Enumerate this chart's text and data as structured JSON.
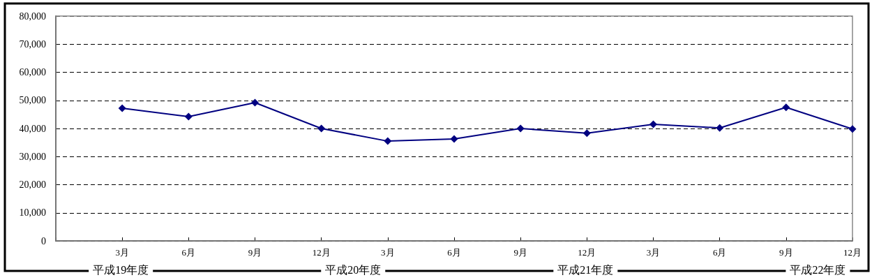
{
  "chart_data": {
    "type": "line",
    "categories": [
      null,
      "3月",
      "6月",
      "9月",
      "12月",
      "3月",
      "6月",
      "9月",
      "12月",
      "3月",
      "6月",
      "9月",
      "12月"
    ],
    "series": [
      {
        "color": "#000080",
        "values": [
          null,
          47200,
          44200,
          49200,
          40000,
          35500,
          36300,
          40000,
          38300,
          41500,
          40200,
          47500,
          39800
        ]
      }
    ],
    "ylim": [
      0,
      80000
    ],
    "yticks": [
      0,
      {
        "value": 10000,
        "label": "10,000"
      },
      {
        "value": 20000,
        "label": "20,000"
      },
      {
        "value": 30000,
        "label": "30,000"
      },
      {
        "value": 40000,
        "label": "40,000"
      },
      {
        "value": 50000,
        "label": "50,000"
      },
      {
        "value": 60000,
        "label": "60,000"
      },
      {
        "value": 70000,
        "label": "70,000"
      },
      {
        "value": 80000,
        "label": "80,000"
      }
    ],
    "grid": "y",
    "marker": "diamond",
    "line_style": "solid",
    "annotations": [
      "平成19年度",
      "平成20年度",
      "平成21年度",
      "平成22年度"
    ]
  }
}
